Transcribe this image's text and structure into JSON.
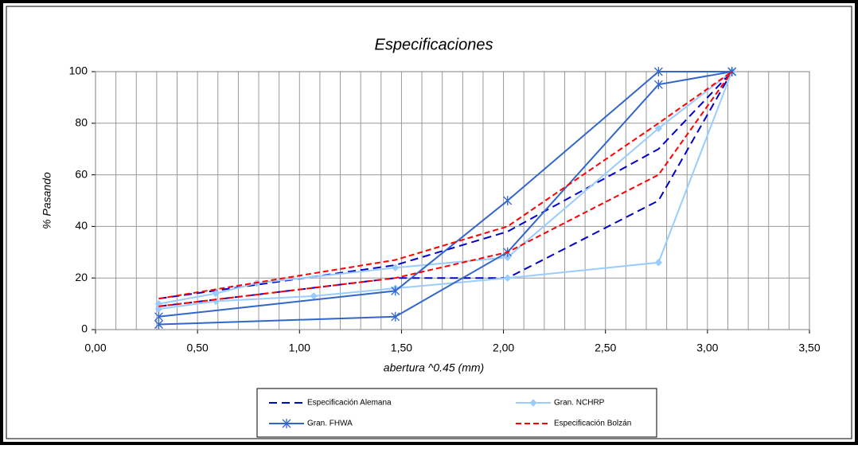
{
  "chart_data": {
    "type": "line",
    "title": "Especificaciones",
    "x_label": "abertura ^0.45 (mm)",
    "y_label": "% Pasando",
    "xlim": [
      0,
      3.5
    ],
    "xticks": [
      {
        "value": 0,
        "label": "0,00"
      },
      {
        "value": 0.5,
        "label": "0,50"
      },
      {
        "value": 1,
        "label": "1,00"
      },
      {
        "value": 1.5,
        "label": "1,50"
      },
      {
        "value": 2,
        "label": "2,00"
      },
      {
        "value": 2.5,
        "label": "2,50"
      },
      {
        "value": 3,
        "label": "3,00"
      },
      {
        "value": 3.5,
        "label": "3,50"
      }
    ],
    "xminorticks": [
      0.1,
      0.2,
      0.3,
      0.4,
      0.6,
      0.7,
      0.8,
      0.9,
      1.1,
      1.2,
      1.3,
      1.4,
      1.6,
      1.7,
      1.8,
      1.9,
      2.1,
      2.2,
      2.3,
      2.4,
      2.6,
      2.7,
      2.8,
      2.9,
      3.1,
      3.2,
      3.3,
      3.4
    ],
    "ylim": [
      0,
      100
    ],
    "yticks": [
      0,
      20,
      40,
      60,
      80,
      100
    ],
    "grid": true,
    "series": [
      {
        "name": "Especificación Alemana",
        "color": "#0000cc",
        "dash": "10 6",
        "marker": "none",
        "lines": [
          {
            "x": [
              0.31,
              1.47,
              2.02,
              2.76,
              3.12
            ],
            "values": [
              12,
              25,
              38,
              70,
              100
            ]
          },
          {
            "x": [
              0.31,
              1.47,
              2.02,
              2.76,
              3.12
            ],
            "values": [
              9,
              20,
              20,
              50,
              100
            ]
          }
        ]
      },
      {
        "name": "Gran. NCHRP",
        "color": "#99ccff",
        "dash": "none",
        "marker": "diamond",
        "lines": [
          {
            "x": [
              0.31,
              0.59,
              0.79,
              1.47,
              2.02,
              2.76,
              3.12
            ],
            "values": [
              10,
              14,
              18,
              24,
              28,
              78,
              100
            ]
          },
          {
            "x": [
              0.31,
              0.59,
              1.07,
              1.47,
              2.02,
              2.76,
              3.12
            ],
            "values": [
              8,
              11,
              13,
              16,
              20,
              26,
              100
            ]
          }
        ]
      },
      {
        "name": "Gran. FHWA",
        "color": "#3366cc",
        "dash": "none",
        "marker": "star",
        "lines": [
          {
            "x": [
              0.31,
              1.47,
              2.02,
              2.76,
              3.12
            ],
            "values": [
              5,
              15,
              50,
              100,
              100
            ]
          },
          {
            "x": [
              0.31,
              1.47,
              2.02,
              2.76,
              3.12
            ],
            "values": [
              2,
              5,
              30,
              95,
              100
            ]
          }
        ]
      },
      {
        "name": "Especificación Bolzán",
        "color": "#ff0000",
        "dash": "7 4",
        "marker": "none",
        "lines": [
          {
            "x": [
              0.31,
              1.47,
              2.02,
              2.76,
              3.12
            ],
            "values": [
              12,
              27,
              40,
              80,
              100
            ]
          },
          {
            "x": [
              0.31,
              1.47,
              2.02,
              2.76,
              3.12
            ],
            "values": [
              9,
              20,
              30,
              60,
              100
            ]
          }
        ]
      }
    ]
  }
}
